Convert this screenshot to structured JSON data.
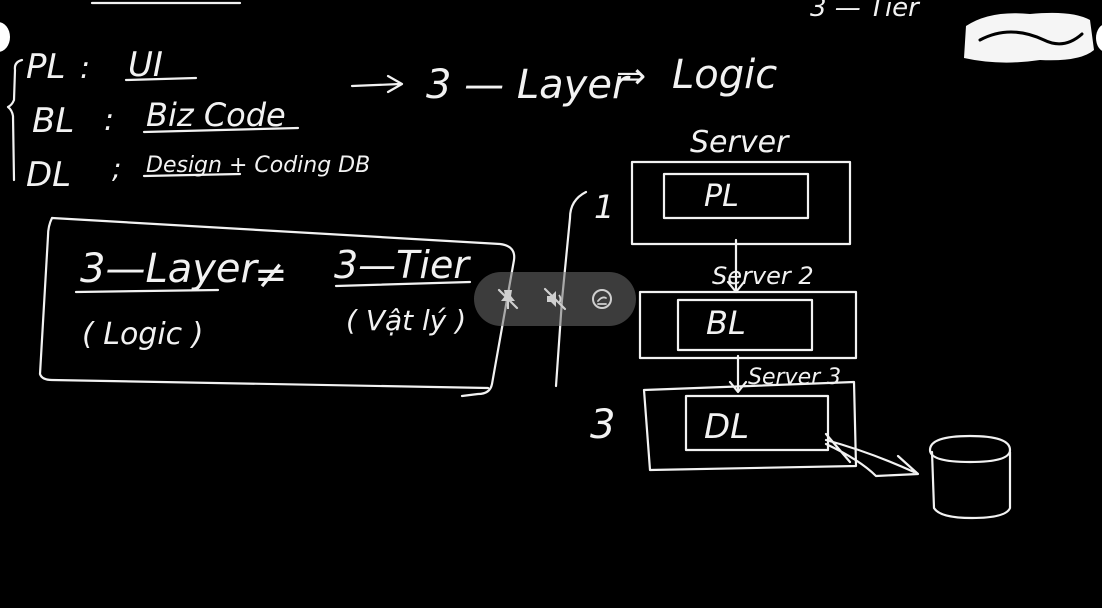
{
  "whiteboard": {
    "top_partial_text": "3 — Tier",
    "layers": [
      {
        "abbr": "PL",
        "sep": ":",
        "desc": "UI"
      },
      {
        "abbr": "BL",
        "sep": ":",
        "desc": "Biz Code"
      },
      {
        "abbr": "DL",
        "sep": ";",
        "desc": "Design + Coding DB"
      }
    ],
    "arrow_note": {
      "left": "3 — Layer",
      "arrow": "⇒",
      "right": "Logic"
    },
    "comparison": {
      "left_title": "3—Layer",
      "neq": "≠",
      "right_title": "3—Tier",
      "left_sub": "( Logic )",
      "right_sub": "( Vật lý )"
    },
    "diagram": {
      "top_label": "Server",
      "index_top": "1",
      "index_bottom": "3",
      "boxes": [
        {
          "label": "PL"
        },
        {
          "label": "BL"
        },
        {
          "label": "DL"
        }
      ],
      "link_labels": [
        "Server 2",
        "Server 3"
      ]
    }
  },
  "controls": {
    "items": [
      {
        "icon": "pin-off-icon"
      },
      {
        "icon": "mic-off-icon"
      },
      {
        "icon": "annotate-icon"
      }
    ]
  },
  "colors": {
    "background": "#000000",
    "ink": "#f2f2f2",
    "control_bg": "#6e6e6e"
  }
}
